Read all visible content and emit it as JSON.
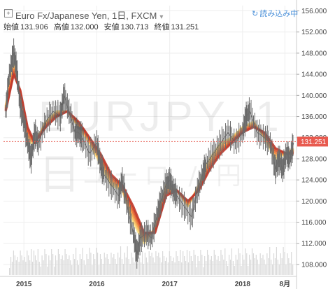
{
  "header": {
    "title": "Euro Fx/Japanese Yen, 1日, FXCM",
    "expand_icon": "plus-square-icon",
    "load_more_label": "読み込み中",
    "load_icon": "spinner-icon",
    "ohlc": [
      {
        "label": "始値",
        "value": "131.906"
      },
      {
        "label": "高値",
        "value": "132.000"
      },
      {
        "label": "安値",
        "value": "130.713"
      },
      {
        "label": "終値",
        "value": "131.251"
      }
    ]
  },
  "watermark": {
    "symbol": "EURJPY, 1日",
    "name": "ユーロ / 円"
  },
  "chart_data": {
    "type": "line",
    "title": "Euro Fx/Japanese Yen, 1日, FXCM",
    "ylim": [
      106,
      157
    ],
    "y_ticks": [
      "108.000",
      "112.000",
      "116.000",
      "120.000",
      "124.000",
      "128.000",
      "132.000",
      "136.000",
      "140.000",
      "144.000",
      "148.000",
      "152.000",
      "156.000"
    ],
    "x_ticks": [
      {
        "label": "2015",
        "t": 2015.0
      },
      {
        "label": "2016",
        "t": 2016.0
      },
      {
        "label": "2017",
        "t": 2017.0
      },
      {
        "label": "2018",
        "t": 2018.0
      },
      {
        "label": "8月",
        "t": 2018.58
      }
    ],
    "last_price": "131.251",
    "colors": {
      "price": "#555555",
      "price_marker": "#e85a4f",
      "ribbon_fast": "#f9e08a",
      "ribbon_slow": "#c0392b",
      "volume": "#d9d9d9",
      "grid": "#eeeeee"
    },
    "series": [
      {
        "name": "price",
        "x": [
          2014.75,
          2014.8,
          2014.86,
          2014.9,
          2014.95,
          2015.0,
          2015.05,
          2015.1,
          2015.15,
          2015.2,
          2015.3,
          2015.4,
          2015.5,
          2015.55,
          2015.62,
          2015.7,
          2015.75,
          2015.8,
          2015.9,
          2016.0,
          2016.05,
          2016.1,
          2016.2,
          2016.3,
          2016.35,
          2016.42,
          2016.5,
          2016.55,
          2016.6,
          2016.68,
          2016.75,
          2016.82,
          2016.88,
          2016.95,
          2017.0,
          2017.05,
          2017.1,
          2017.2,
          2017.3,
          2017.38,
          2017.45,
          2017.5,
          2017.6,
          2017.7,
          2017.8,
          2017.9,
          2018.0,
          2018.05,
          2018.1,
          2018.2,
          2018.3,
          2018.38,
          2018.45,
          2018.5,
          2018.55,
          2018.6,
          2018.65,
          2018.7
        ],
        "values": [
          137,
          144,
          148,
          145,
          138,
          135,
          131,
          128,
          133,
          131,
          135,
          137,
          136,
          140,
          137,
          133,
          133,
          132,
          129,
          131,
          127,
          125,
          123,
          121,
          124,
          119,
          114,
          110,
          113,
          114,
          113,
          117,
          120,
          123,
          124,
          122,
          121,
          119,
          117,
          122,
          125,
          127,
          129,
          131,
          133,
          131,
          133,
          136,
          137,
          133,
          132,
          131,
          126,
          128,
          126,
          129,
          128,
          131
        ]
      },
      {
        "name": "ma_fast",
        "x": [
          2014.75,
          2014.86,
          2014.95,
          2015.05,
          2015.15,
          2015.3,
          2015.45,
          2015.6,
          2015.75,
          2015.9,
          2016.05,
          2016.2,
          2016.35,
          2016.5,
          2016.65,
          2016.8,
          2016.95,
          2017.1,
          2017.25,
          2017.4,
          2017.55,
          2017.7,
          2017.85,
          2018.0,
          2018.15,
          2018.3,
          2018.45,
          2018.6,
          2018.7
        ],
        "values": [
          138,
          146,
          140,
          131,
          131,
          135,
          137,
          137,
          134,
          131,
          127,
          123,
          122,
          116,
          112,
          115,
          123,
          122,
          119,
          123,
          128,
          131,
          132,
          134,
          135,
          132,
          128,
          129,
          130
        ]
      },
      {
        "name": "ma_slow",
        "x": [
          2014.75,
          2014.86,
          2014.95,
          2015.05,
          2015.15,
          2015.3,
          2015.45,
          2015.6,
          2015.75,
          2015.9,
          2016.05,
          2016.2,
          2016.35,
          2016.5,
          2016.65,
          2016.8,
          2016.95,
          2017.1,
          2017.25,
          2017.4,
          2017.55,
          2017.7,
          2017.85,
          2018.0,
          2018.15,
          2018.3,
          2018.45,
          2018.6,
          2018.7
        ],
        "values": [
          137,
          144,
          141,
          134,
          131,
          134,
          136,
          137,
          135,
          132,
          129,
          125,
          123,
          119,
          114,
          114,
          121,
          122,
          120,
          122,
          126,
          129,
          131,
          133,
          134,
          133,
          130,
          129,
          129
        ]
      }
    ]
  }
}
